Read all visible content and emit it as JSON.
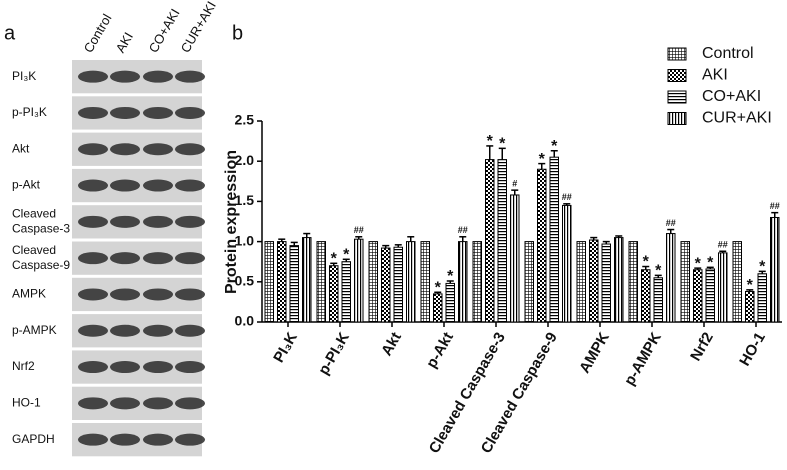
{
  "blot": {
    "label": "a",
    "lanes": [
      "Control",
      "AKI",
      "CO+AKI",
      "CUR+AKI"
    ],
    "rows": [
      [
        "PI₃K"
      ],
      [
        "p-PI₃K"
      ],
      [
        "Akt"
      ],
      [
        "p-Akt"
      ],
      [
        "Cleaved",
        "Caspase-3"
      ],
      [
        "Cleaved",
        "Caspase-9"
      ],
      [
        "AMPK"
      ],
      [
        "p-AMPK"
      ],
      [
        "Nrf2"
      ],
      [
        "HO-1"
      ],
      [
        "GAPDH"
      ]
    ]
  },
  "chart_data": {
    "type": "bar",
    "label": "b",
    "y_label": "Protein expression",
    "categories": [
      "PI₃K",
      "p-PI₃K",
      "Akt",
      "p-Akt",
      "Cleaved Caspase-3",
      "Cleaved Caspase-9",
      "AMPK",
      "p-AMPK",
      "Nrf2",
      "HO-1"
    ],
    "series": [
      {
        "name": "Control",
        "color": "#000000",
        "pattern": "grid",
        "values": [
          1.0,
          1.0,
          1.0,
          1.0,
          1.0,
          1.0,
          1.0,
          1.0,
          1.0,
          1.0
        ]
      },
      {
        "name": "AKI",
        "color": "#000000",
        "pattern": "checker",
        "values": [
          1.0,
          0.7,
          0.92,
          0.35,
          2.02,
          1.9,
          1.02,
          0.65,
          0.65,
          0.38
        ],
        "errors": [
          0.03,
          0.03,
          0.03,
          0.02,
          0.17,
          0.07,
          0.03,
          0.04,
          0.02,
          0.02
        ],
        "annotations": [
          null,
          "*",
          null,
          "*",
          "*",
          "*",
          null,
          "*",
          "*",
          "*"
        ]
      },
      {
        "name": "CO+AKI",
        "color": "#000000",
        "pattern": "hlines",
        "values": [
          0.95,
          0.75,
          0.93,
          0.48,
          2.02,
          2.05,
          0.97,
          0.55,
          0.66,
          0.6
        ],
        "errors": [
          0.04,
          0.03,
          0.03,
          0.03,
          0.14,
          0.08,
          0.03,
          0.03,
          0.02,
          0.03
        ],
        "annotations": [
          null,
          "*",
          null,
          "*",
          "*",
          "*",
          null,
          "*",
          "*",
          "*"
        ]
      },
      {
        "name": "CUR+AKI",
        "color": "#000000",
        "pattern": "vlines",
        "values": [
          1.05,
          1.03,
          1.0,
          1.0,
          1.58,
          1.45,
          1.05,
          1.1,
          0.86,
          1.3
        ],
        "errors": [
          0.05,
          0.03,
          0.06,
          0.06,
          0.06,
          0.02,
          0.02,
          0.05,
          0.02,
          0.06
        ],
        "annotations": [
          null,
          "##",
          null,
          "##",
          "#",
          "##",
          null,
          "##",
          "##",
          "##"
        ]
      }
    ],
    "ylim": [
      0,
      2.5
    ],
    "yticks": [
      {
        "value": 0,
        "label": "0.0"
      },
      {
        "value": 0.5,
        "label": "0.5"
      },
      {
        "value": 1,
        "label": "1.0"
      },
      {
        "value": 1.5,
        "label": "1.5"
      },
      {
        "value": 2,
        "label": "2.0"
      },
      {
        "value": 2.5,
        "label": "2.5"
      }
    ],
    "legend": "upper-right"
  }
}
